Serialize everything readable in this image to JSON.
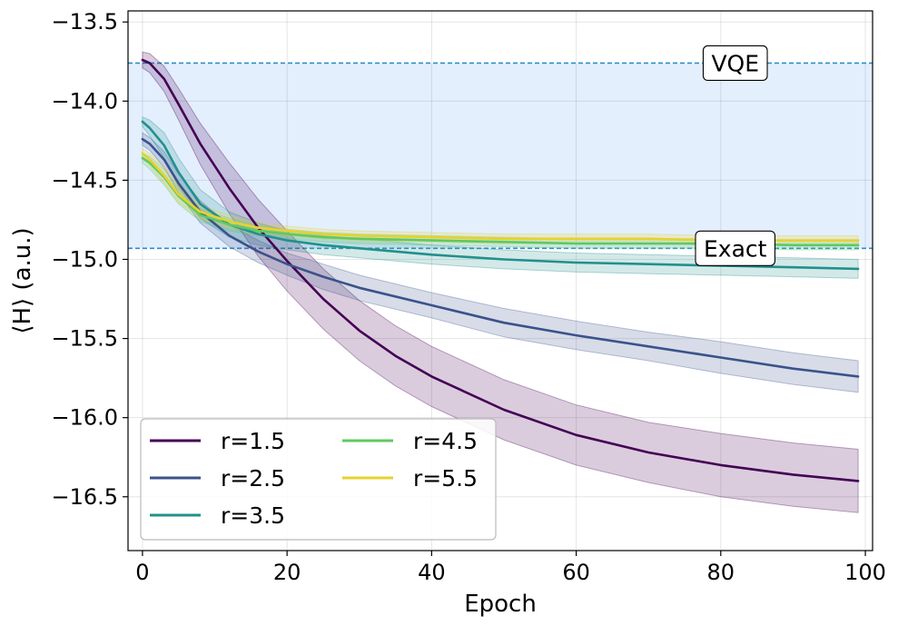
{
  "chart_data": {
    "type": "line",
    "xlabel": "Epoch",
    "ylabel": "⟨H⟩ (a.u.)",
    "xlim": [
      -2,
      101
    ],
    "ylim": [
      -16.84,
      -13.43
    ],
    "xticks": [
      0,
      20,
      40,
      60,
      80,
      100
    ],
    "yticks": [
      -13.5,
      -14.0,
      -14.5,
      -15.0,
      -15.5,
      -16.0,
      -16.5
    ],
    "grid": true,
    "legend": {
      "placement": "bottom-left",
      "columns": 2
    },
    "reference_band": {
      "from": -13.76,
      "to": -14.93,
      "color": "#dbeafe"
    },
    "reference_lines": [
      {
        "name": "VQE",
        "y": -13.76,
        "label_x": 82,
        "color": "#2b8fc7"
      },
      {
        "name": "Exact",
        "y": -14.93,
        "label_x": 82,
        "color": "#2b8fc7"
      }
    ],
    "series": [
      {
        "name": "r=1.5",
        "color": "#440154",
        "x": [
          0,
          1,
          3,
          5,
          8,
          12,
          16,
          20,
          25,
          30,
          35,
          40,
          50,
          60,
          70,
          80,
          90,
          99
        ],
        "y": [
          -13.74,
          -13.76,
          -13.86,
          -14.02,
          -14.27,
          -14.55,
          -14.8,
          -15.01,
          -15.25,
          -15.45,
          -15.61,
          -15.74,
          -15.95,
          -16.11,
          -16.22,
          -16.3,
          -16.36,
          -16.4
        ],
        "err": [
          0.05,
          0.06,
          0.08,
          0.1,
          0.13,
          0.16,
          0.18,
          0.19,
          0.19,
          0.19,
          0.19,
          0.19,
          0.19,
          0.19,
          0.19,
          0.2,
          0.2,
          0.2
        ]
      },
      {
        "name": "r=2.5",
        "color": "#3b528b",
        "x": [
          0,
          1,
          3,
          5,
          8,
          12,
          16,
          20,
          25,
          30,
          40,
          50,
          60,
          70,
          80,
          90,
          99
        ],
        "y": [
          -14.24,
          -14.27,
          -14.37,
          -14.52,
          -14.7,
          -14.85,
          -14.95,
          -15.03,
          -15.11,
          -15.18,
          -15.29,
          -15.4,
          -15.48,
          -15.55,
          -15.62,
          -15.69,
          -15.74
        ],
        "err": [
          0.04,
          0.04,
          0.05,
          0.06,
          0.07,
          0.07,
          0.07,
          0.07,
          0.08,
          0.08,
          0.08,
          0.09,
          0.09,
          0.09,
          0.1,
          0.1,
          0.1
        ]
      },
      {
        "name": "r=3.5",
        "color": "#21908d",
        "x": [
          0,
          1,
          3,
          5,
          8,
          12,
          16,
          20,
          25,
          30,
          40,
          50,
          60,
          70,
          80,
          90,
          99
        ],
        "y": [
          -14.13,
          -14.17,
          -14.28,
          -14.45,
          -14.65,
          -14.78,
          -14.84,
          -14.88,
          -14.91,
          -14.93,
          -14.97,
          -15.0,
          -15.02,
          -15.03,
          -15.04,
          -15.05,
          -15.06
        ],
        "err": [
          0.03,
          0.05,
          0.08,
          0.09,
          0.09,
          0.08,
          0.07,
          0.06,
          0.06,
          0.06,
          0.06,
          0.06,
          0.06,
          0.06,
          0.06,
          0.06,
          0.06
        ]
      },
      {
        "name": "r=4.5",
        "color": "#5ec962",
        "x": [
          0,
          1,
          3,
          5,
          8,
          12,
          16,
          20,
          25,
          30,
          40,
          50,
          60,
          70,
          80,
          90,
          99
        ],
        "y": [
          -14.36,
          -14.39,
          -14.48,
          -14.6,
          -14.72,
          -14.78,
          -14.82,
          -14.84,
          -14.86,
          -14.87,
          -14.88,
          -14.89,
          -14.9,
          -14.9,
          -14.9,
          -14.91,
          -14.91
        ],
        "err": [
          0.03,
          0.04,
          0.05,
          0.05,
          0.04,
          0.04,
          0.03,
          0.03,
          0.03,
          0.03,
          0.03,
          0.03,
          0.03,
          0.03,
          0.03,
          0.03,
          0.03
        ]
      },
      {
        "name": "r=5.5",
        "color": "#e6d22e",
        "x": [
          0,
          1,
          3,
          5,
          8,
          12,
          16,
          20,
          25,
          30,
          40,
          50,
          60,
          70,
          80,
          90,
          99
        ],
        "y": [
          -14.33,
          -14.37,
          -14.47,
          -14.59,
          -14.7,
          -14.76,
          -14.8,
          -14.82,
          -14.84,
          -14.85,
          -14.86,
          -14.87,
          -14.87,
          -14.87,
          -14.88,
          -14.88,
          -14.88
        ],
        "err": [
          0.03,
          0.04,
          0.05,
          0.05,
          0.04,
          0.04,
          0.03,
          0.03,
          0.03,
          0.03,
          0.03,
          0.03,
          0.03,
          0.03,
          0.03,
          0.03,
          0.03
        ]
      }
    ]
  }
}
